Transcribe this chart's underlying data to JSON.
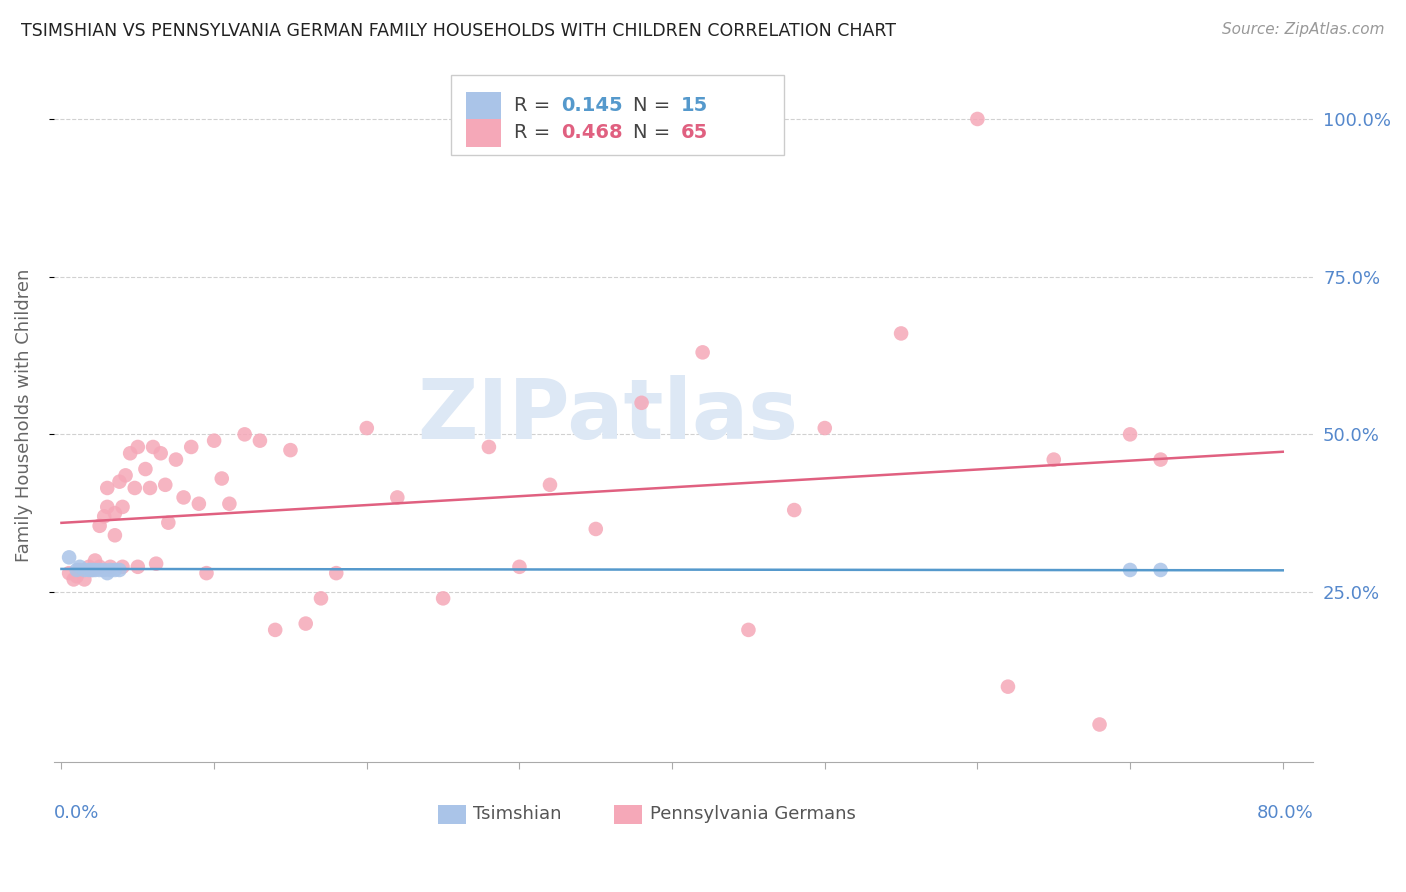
{
  "title": "TSIMSHIAN VS PENNSYLVANIA GERMAN FAMILY HOUSEHOLDS WITH CHILDREN CORRELATION CHART",
  "source": "Source: ZipAtlas.com",
  "ylabel": "Family Households with Children",
  "ytick_labels": [
    "25.0%",
    "50.0%",
    "75.0%",
    "100.0%"
  ],
  "ytick_values": [
    0.25,
    0.5,
    0.75,
    1.0
  ],
  "xlim": [
    -0.005,
    0.82
  ],
  "ylim": [
    -0.02,
    1.08
  ],
  "tsimshian_color": "#aac4e8",
  "penn_german_color": "#f5a8b8",
  "tsimshian_line_color": "#5599cc",
  "penn_german_line_color": "#e06080",
  "right_tick_color": "#5588cc",
  "watermark_color": "#dde8f5",
  "background_color": "#ffffff",
  "tsimshian_x": [
    0.005,
    0.01,
    0.012,
    0.015,
    0.018,
    0.02,
    0.022,
    0.025,
    0.028,
    0.03,
    0.032,
    0.035,
    0.038,
    0.7,
    0.72
  ],
  "tsimshian_y": [
    0.305,
    0.285,
    0.29,
    0.285,
    0.285,
    0.285,
    0.285,
    0.285,
    0.285,
    0.28,
    0.285,
    0.285,
    0.285,
    0.285,
    0.285
  ],
  "penn_german_x": [
    0.005,
    0.008,
    0.01,
    0.012,
    0.015,
    0.018,
    0.02,
    0.022,
    0.025,
    0.025,
    0.028,
    0.03,
    0.03,
    0.032,
    0.035,
    0.035,
    0.038,
    0.04,
    0.04,
    0.042,
    0.045,
    0.048,
    0.05,
    0.05,
    0.055,
    0.058,
    0.06,
    0.062,
    0.065,
    0.068,
    0.07,
    0.075,
    0.08,
    0.085,
    0.09,
    0.095,
    0.1,
    0.105,
    0.11,
    0.12,
    0.13,
    0.14,
    0.15,
    0.16,
    0.17,
    0.18,
    0.2,
    0.22,
    0.25,
    0.28,
    0.3,
    0.32,
    0.35,
    0.38,
    0.42,
    0.45,
    0.48,
    0.5,
    0.55,
    0.6,
    0.62,
    0.65,
    0.68,
    0.7,
    0.72
  ],
  "penn_german_y": [
    0.28,
    0.27,
    0.275,
    0.285,
    0.27,
    0.29,
    0.285,
    0.3,
    0.355,
    0.29,
    0.37,
    0.415,
    0.385,
    0.29,
    0.375,
    0.34,
    0.425,
    0.385,
    0.29,
    0.435,
    0.47,
    0.415,
    0.48,
    0.29,
    0.445,
    0.415,
    0.48,
    0.295,
    0.47,
    0.42,
    0.36,
    0.46,
    0.4,
    0.48,
    0.39,
    0.28,
    0.49,
    0.43,
    0.39,
    0.5,
    0.49,
    0.19,
    0.475,
    0.2,
    0.24,
    0.28,
    0.51,
    0.4,
    0.24,
    0.48,
    0.29,
    0.42,
    0.35,
    0.55,
    0.63,
    0.19,
    0.38,
    0.51,
    0.66,
    1.0,
    0.1,
    0.46,
    0.04,
    0.5,
    0.46
  ]
}
